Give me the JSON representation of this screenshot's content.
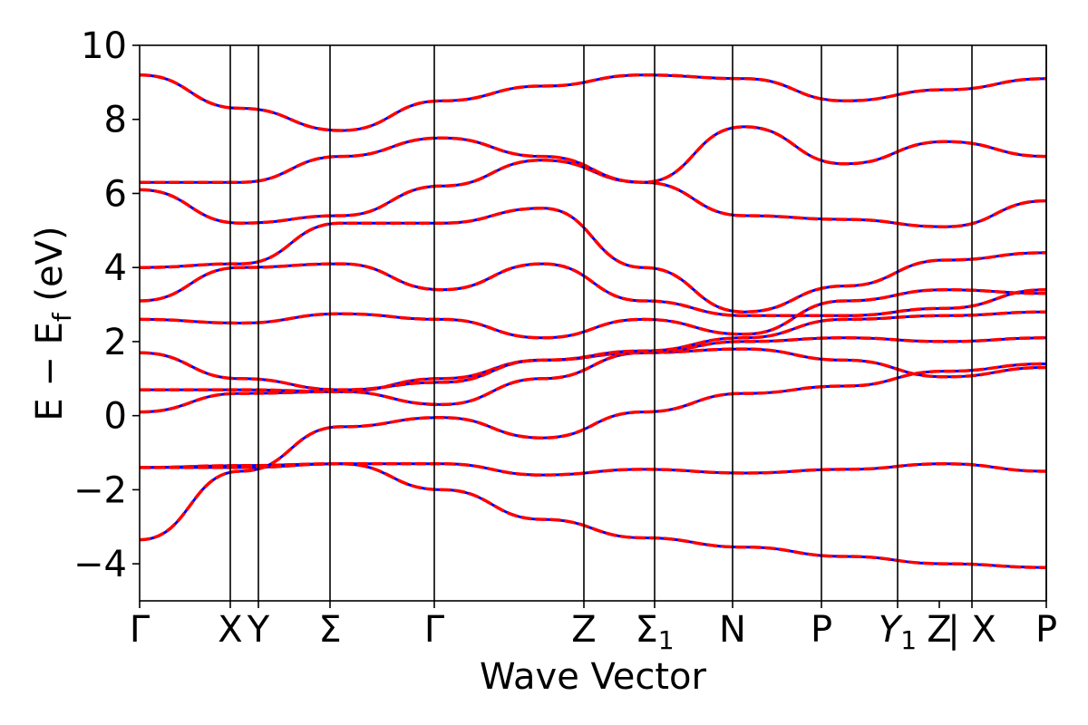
{
  "chart_data": {
    "type": "line",
    "xlabel": "Wave Vector",
    "ylabel": "E − E_f (eV)",
    "ylabel_main": "E − E",
    "ylabel_sub": "f",
    "ylabel_unit": " (eV)",
    "ylim": [
      -5,
      10
    ],
    "xlim": [
      0,
      1
    ],
    "yticks": [
      -4,
      -2,
      0,
      2,
      4,
      6,
      8,
      10
    ],
    "ytick_labels": [
      "−4",
      "−2",
      "0",
      "2",
      "4",
      "6",
      "8",
      "10"
    ],
    "high_symmetry_points": [
      {
        "label": "Γ",
        "x": 0.0
      },
      {
        "label": "X",
        "x": 0.1
      },
      {
        "label": "Y",
        "x": 0.131
      },
      {
        "label": "Σ",
        "x": 0.21
      },
      {
        "label": "Γ",
        "x": 0.325
      },
      {
        "label": "Z",
        "x": 0.49
      },
      {
        "label": "Σ",
        "sub": "1",
        "x": 0.568
      },
      {
        "label": "N",
        "x": 0.654
      },
      {
        "label": "P",
        "x": 0.752
      },
      {
        "label": "Y",
        "sub": "1",
        "x": 0.836,
        "italic": true
      },
      {
        "label": "Z",
        "x": 0.882
      },
      {
        "label": "| X",
        "x": 0.918
      },
      {
        "label": "P",
        "x": 1.0
      }
    ],
    "separator_lines_x": [
      0.1,
      0.131,
      0.21,
      0.325,
      0.49,
      0.568,
      0.654,
      0.752,
      0.836,
      0.918,
      1.0
    ],
    "series": [
      {
        "style": "solid",
        "color": "#0000ff"
      },
      {
        "style": "dashed",
        "color": "#ff0000"
      }
    ],
    "bands": [
      [
        -1.4,
        -1.35,
        -1.3,
        -2.0,
        -2.8,
        -3.3,
        -3.55,
        -3.8,
        -4.0,
        -4.1
      ],
      [
        -1.4,
        -1.4,
        -1.3,
        -1.3,
        -1.6,
        -1.45,
        -1.55,
        -1.45,
        -1.3,
        -1.5
      ],
      [
        -3.35,
        -1.5,
        -0.3,
        -0.05,
        -0.6,
        0.1,
        0.6,
        0.8,
        1.2,
        1.4
      ],
      [
        0.1,
        0.6,
        0.65,
        0.3,
        1.0,
        1.7,
        1.8,
        1.5,
        1.05,
        1.3
      ],
      [
        0.7,
        0.7,
        0.65,
        1.0,
        1.5,
        1.7,
        2.0,
        2.1,
        2.0,
        2.1
      ],
      [
        1.7,
        1.0,
        0.7,
        0.9,
        1.5,
        1.75,
        2.1,
        2.6,
        2.7,
        2.8
      ],
      [
        2.6,
        2.5,
        2.75,
        2.6,
        2.1,
        2.6,
        2.2,
        3.1,
        3.4,
        3.3
      ],
      [
        3.1,
        4.0,
        4.1,
        3.4,
        4.1,
        3.1,
        2.7,
        2.7,
        2.9,
        3.4
      ],
      [
        4.0,
        4.1,
        5.2,
        5.2,
        5.6,
        4.0,
        2.8,
        3.5,
        4.2,
        4.4
      ],
      [
        6.1,
        5.2,
        5.4,
        6.2,
        6.9,
        6.3,
        5.4,
        5.3,
        5.1,
        5.8
      ],
      [
        6.3,
        6.3,
        7.0,
        7.5,
        7.0,
        6.3,
        7.8,
        6.8,
        7.4,
        7.0
      ],
      [
        9.2,
        8.3,
        7.7,
        8.5,
        8.9,
        9.2,
        9.1,
        8.5,
        8.8,
        9.1
      ]
    ]
  }
}
